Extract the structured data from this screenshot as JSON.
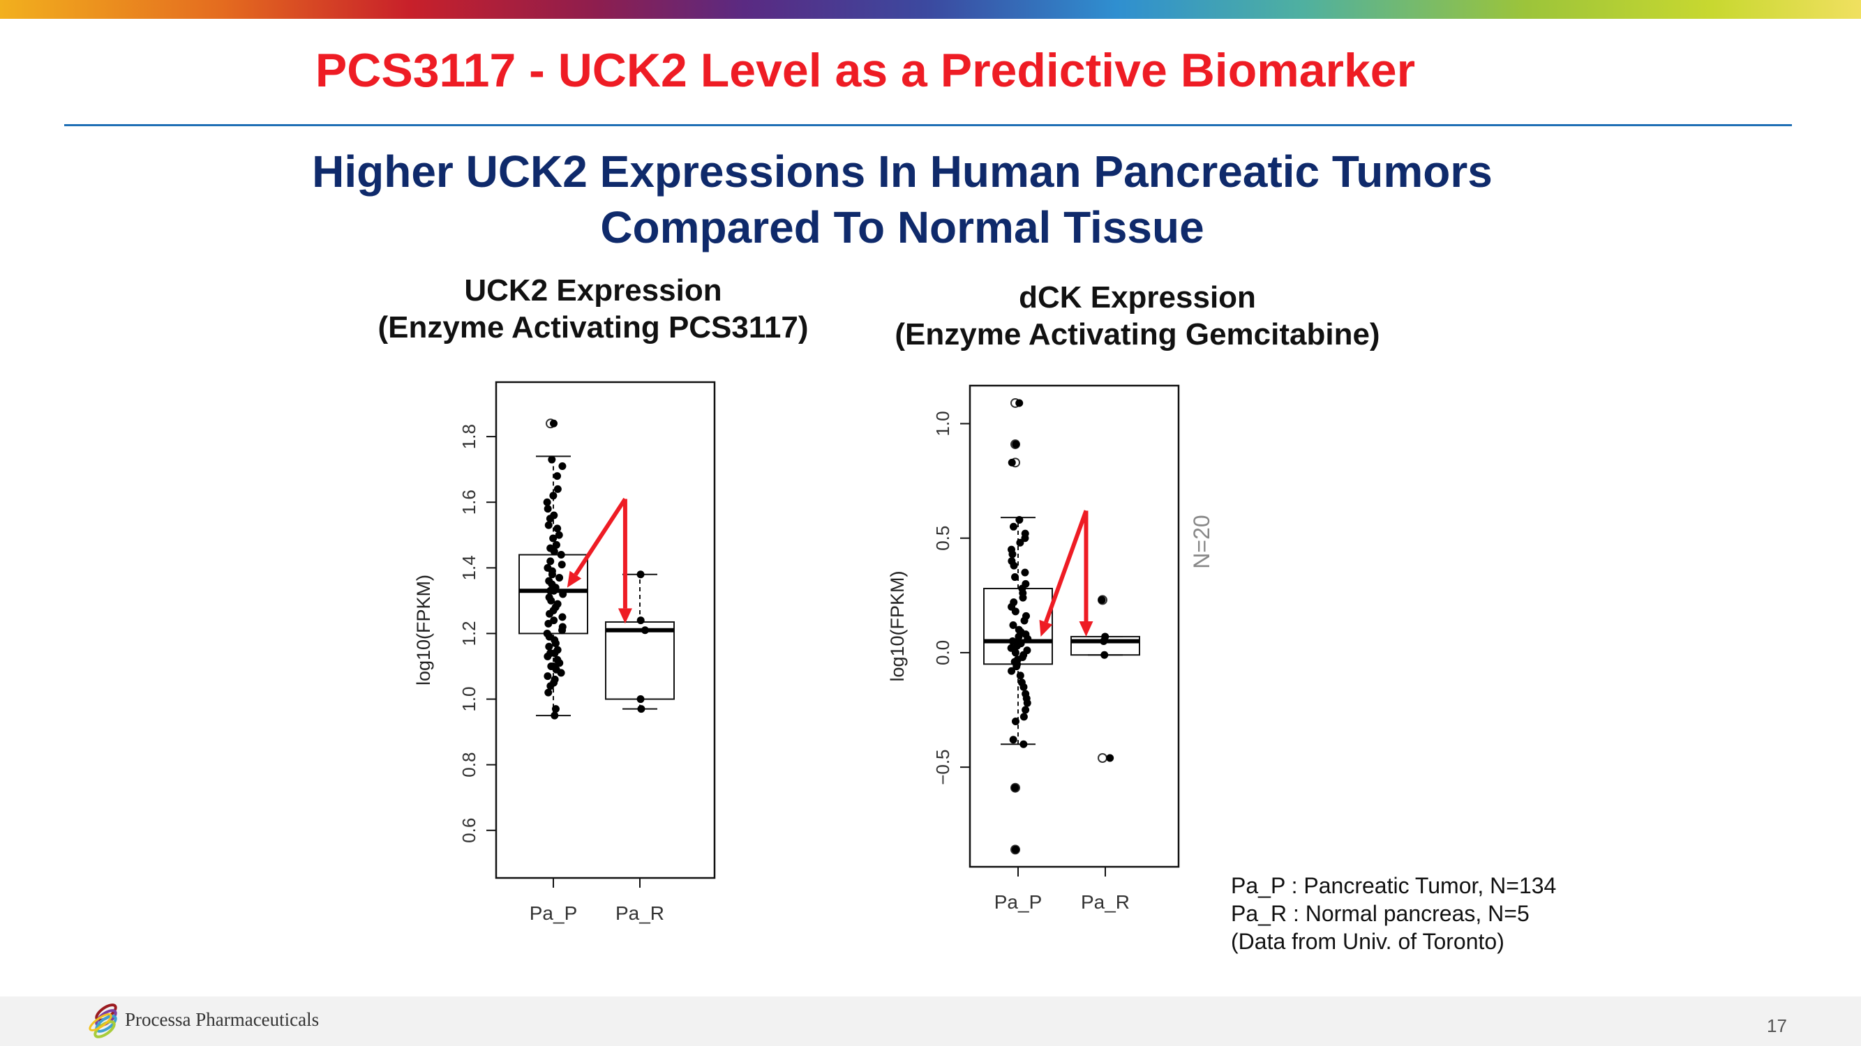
{
  "title": "PCS3117 - UCK2 Level as a Predictive Biomarker",
  "subtitle": [
    "Higher UCK2 Expressions In Human Pancreatic Tumors",
    "Compared To Normal Tissue"
  ],
  "colors": {
    "title": "#ee1c24",
    "subtitle": "#0f2a6b",
    "rule": "#1f6fb5",
    "arrow": "#ee1c24"
  },
  "chart_data": [
    {
      "type": "box",
      "title": [
        "UCK2 Expression",
        "(Enzyme Activating PCS3117)"
      ],
      "ylabel": "log10(FPKM)",
      "xlabel": "",
      "ylim": [
        0.455,
        1.966
      ],
      "yticks": [
        "0.6",
        "0.8",
        "1.0",
        "1.2",
        "1.4",
        "1.6",
        "1.8"
      ],
      "categories": [
        "Pa_P",
        "Pa_R"
      ],
      "boxes": [
        {
          "name": "Pa_P",
          "whisker_low": 0.95,
          "q1": 1.2,
          "median": 1.33,
          "q3": 1.44,
          "whisker_high": 1.74,
          "outliers": [
            1.84
          ],
          "points": [
            0.95,
            0.97,
            1.02,
            1.04,
            1.05,
            1.06,
            1.07,
            1.08,
            1.09,
            1.1,
            1.1,
            1.11,
            1.12,
            1.13,
            1.14,
            1.14,
            1.15,
            1.16,
            1.17,
            1.18,
            1.19,
            1.2,
            1.21,
            1.22,
            1.23,
            1.24,
            1.25,
            1.26,
            1.27,
            1.28,
            1.29,
            1.3,
            1.31,
            1.32,
            1.33,
            1.33,
            1.34,
            1.35,
            1.36,
            1.37,
            1.38,
            1.39,
            1.4,
            1.41,
            1.42,
            1.44,
            1.45,
            1.46,
            1.47,
            1.49,
            1.5,
            1.52,
            1.53,
            1.55,
            1.56,
            1.58,
            1.6,
            1.62,
            1.64,
            1.68,
            1.71,
            1.73,
            1.84
          ]
        },
        {
          "name": "Pa_R",
          "whisker_low": 0.97,
          "q1": 1.0,
          "median": 1.21,
          "q3": 1.235,
          "whisker_high": 1.38,
          "outliers": [],
          "points": [
            0.97,
            1.0,
            1.21,
            1.24,
            1.38
          ]
        }
      ],
      "annotations": {
        "apex": [
          1.83,
          1.61
        ],
        "arrow_targets": [
          [
            1.16,
            1.34
          ],
          [
            1.83,
            1.23
          ]
        ]
      }
    },
    {
      "type": "box",
      "title": [
        "dCK Expression",
        "(Enzyme Activating Gemcitabine)"
      ],
      "ylabel": "log10(FPKM)",
      "xlabel": "",
      "ylim": [
        -0.935,
        1.166
      ],
      "yticks": [
        "-0.5",
        "0.0",
        "0.5",
        "1.0"
      ],
      "categories": [
        "Pa_P",
        "Pa_R"
      ],
      "side_label": "N=20",
      "boxes": [
        {
          "name": "Pa_P",
          "whisker_low": -0.4,
          "q1": -0.05,
          "median": 0.05,
          "q3": 0.28,
          "whisker_high": 0.59,
          "outliers": [
            1.09,
            0.91,
            0.83,
            -0.59,
            -0.86
          ],
          "points": [
            -0.86,
            -0.59,
            -0.4,
            -0.38,
            -0.3,
            -0.28,
            -0.25,
            -0.22,
            -0.2,
            -0.18,
            -0.15,
            -0.13,
            -0.1,
            -0.08,
            -0.06,
            -0.05,
            -0.04,
            -0.03,
            -0.02,
            -0.01,
            0.0,
            0.01,
            0.02,
            0.03,
            0.04,
            0.05,
            0.05,
            0.06,
            0.07,
            0.08,
            0.09,
            0.1,
            0.12,
            0.14,
            0.16,
            0.18,
            0.2,
            0.22,
            0.24,
            0.26,
            0.28,
            0.3,
            0.33,
            0.35,
            0.38,
            0.4,
            0.43,
            0.45,
            0.48,
            0.5,
            0.52,
            0.55,
            0.58,
            0.83,
            0.91,
            1.09
          ]
        },
        {
          "name": "Pa_R",
          "whisker_low": -0.01,
          "q1": -0.01,
          "median": 0.05,
          "q3": 0.07,
          "whisker_high": 0.07,
          "outliers": [
            0.23,
            -0.46
          ],
          "points": [
            0.23,
            0.07,
            0.05,
            -0.01,
            -0.46
          ]
        }
      ],
      "annotations": {
        "apex": [
          1.78,
          0.62
        ],
        "arrow_targets": [
          [
            1.26,
            0.07
          ],
          [
            1.78,
            0.07
          ]
        ]
      }
    }
  ],
  "legend": [
    "Pa_P : Pancreatic Tumor, N=134",
    "Pa_R : Normal pancreas, N=5",
    "(Data from Univ. of Toronto)"
  ],
  "footer": {
    "company": "Processa Pharmaceuticals",
    "page": "17"
  }
}
